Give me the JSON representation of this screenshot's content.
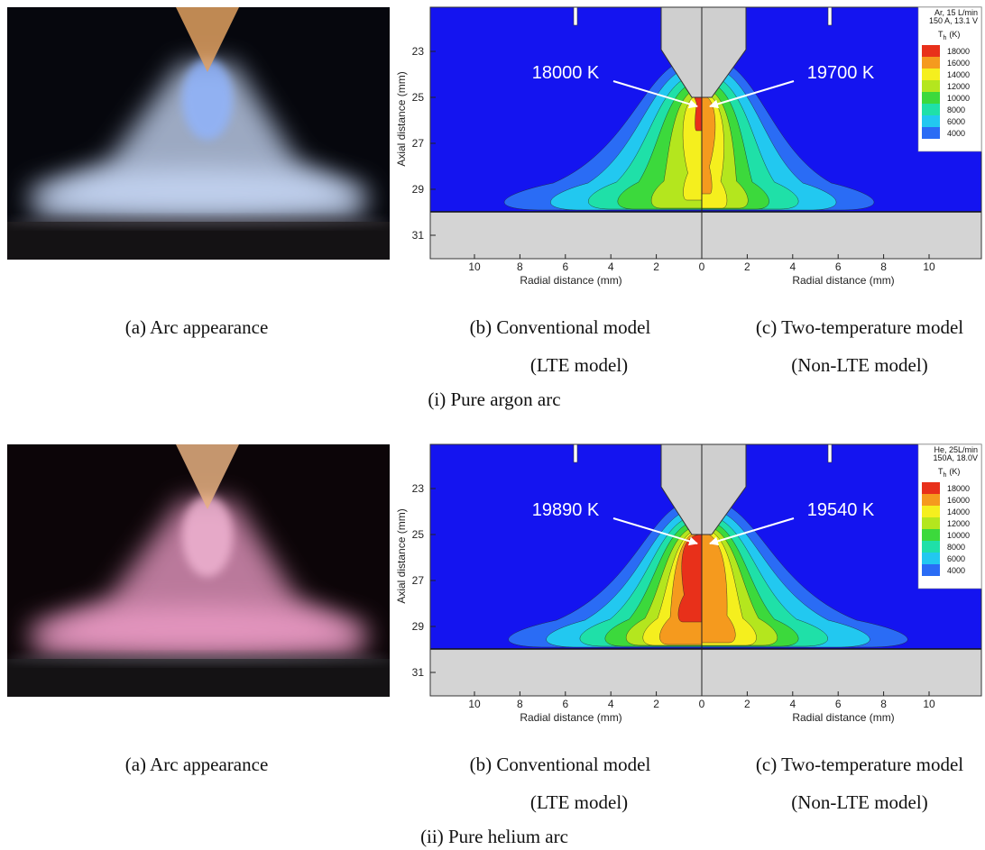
{
  "panels": [
    {
      "photo_caption": "(a) Arc appearance",
      "lte_caption": "(b) Conventional model",
      "lte_caption_sub": "(LTE model)",
      "nlte_caption": "(c) Two-temperature model",
      "nlte_caption_sub": "(Non-LTE model)",
      "panel_caption": "(i) Pure argon arc",
      "plot": {
        "conditions": [
          "Ar, 15 L/min",
          "150 A, 13.1 V"
        ],
        "legend_title": {
          "symbol": "T",
          "subscript": "h",
          "unit": "(K)"
        },
        "legend_levels": [
          18000,
          16000,
          14000,
          12000,
          10000,
          8000,
          6000,
          4000
        ],
        "y_label": "Axial distance (mm)",
        "yticks": [
          23,
          25,
          27,
          29,
          31
        ],
        "x_label_left": "Radial distance (mm)",
        "x_label_right": "Radial distance (mm)",
        "xticks_left": [
          10,
          8,
          6,
          4,
          2,
          0
        ],
        "xticks_right": [
          2,
          4,
          6,
          8,
          10
        ],
        "annotation_left": "18000 K",
        "annotation_right": "19700 K"
      }
    },
    {
      "photo_caption": "(a) Arc appearance",
      "lte_caption": "(b) Conventional model",
      "lte_caption_sub": "(LTE model)",
      "nlte_caption": "(c) Two-temperature model",
      "nlte_caption_sub": "(Non-LTE model)",
      "panel_caption": "(ii) Pure helium arc",
      "plot": {
        "conditions": [
          "He, 25L/min",
          "150A, 18.0V"
        ],
        "legend_title": {
          "symbol": "T",
          "subscript": "h",
          "unit": "(K)"
        },
        "legend_levels": [
          18000,
          16000,
          14000,
          12000,
          10000,
          8000,
          6000,
          4000
        ],
        "y_label": "Axial distance (mm)",
        "yticks": [
          23,
          25,
          27,
          29,
          31
        ],
        "x_label_left": "Radial distance (mm)",
        "x_label_right": "Radial distance (mm)",
        "xticks_left": [
          10,
          8,
          6,
          4,
          2,
          0
        ],
        "xticks_right": [
          2,
          4,
          6,
          8,
          10
        ],
        "annotation_left": "19890 K",
        "annotation_right": "19540 K"
      }
    }
  ]
}
